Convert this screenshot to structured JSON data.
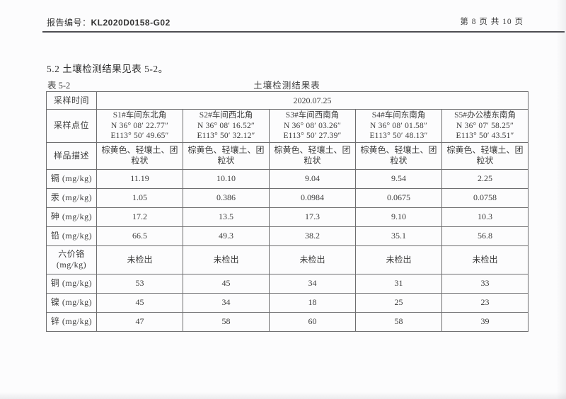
{
  "header": {
    "report_label": "报告编号：",
    "report_number": "KL2020D0158-G02",
    "page_indicator": "第 8 页  共 10 页"
  },
  "section_title": "5.2 土壤检测结果见表 5-2。",
  "caption": {
    "table_number": "表 5-2",
    "table_title": "土壤检测结果表"
  },
  "table": {
    "sampling_time": {
      "label": "采样时间",
      "value": "2020.07.25"
    },
    "sampling_points": {
      "label": "采样点位",
      "points": [
        {
          "name": "S1#车间东北角",
          "lat": "N 36° 08′ 22.77″",
          "lon": "E113° 50′ 49.65″"
        },
        {
          "name": "S2#车间西北角",
          "lat": "N 36° 08′ 16.52″",
          "lon": "E113° 50′ 32.12″"
        },
        {
          "name": "S3#车间西南角",
          "lat": "N 36° 08′ 03.26″",
          "lon": "E113° 50′ 27.39″"
        },
        {
          "name": "S4#车间东南角",
          "lat": "N 36° 08′ 01.58″",
          "lon": "E113° 50′ 48.13″"
        },
        {
          "name": "S5#办公楼东南角",
          "lat": "N 36° 07′ 58.25″",
          "lon": "E113° 50′ 43.51″"
        }
      ]
    },
    "sample_description": {
      "label": "样品描述",
      "values": [
        "棕黄色、轻壤土、团粒状",
        "棕黄色、轻壤土、团粒状",
        "棕黄色、轻壤土、团粒状",
        "棕黄色、轻壤土、团粒状",
        "棕黄色、轻壤土、团粒状"
      ]
    },
    "analytes": [
      {
        "label": "镉 (mg/kg)",
        "values": [
          "11.19",
          "10.10",
          "9.04",
          "9.54",
          "2.25"
        ]
      },
      {
        "label": "汞 (mg/kg)",
        "values": [
          "1.05",
          "0.386",
          "0.0984",
          "0.0675",
          "0.0758"
        ]
      },
      {
        "label": "砷 (mg/kg)",
        "values": [
          "17.2",
          "13.5",
          "17.3",
          "9.10",
          "10.3"
        ]
      },
      {
        "label": "铅 (mg/kg)",
        "values": [
          "66.5",
          "49.3",
          "38.2",
          "35.1",
          "56.8"
        ]
      },
      {
        "label": "六价铬\n(mg/kg)",
        "values": [
          "未检出",
          "未检出",
          "未检出",
          "未检出",
          "未检出"
        ]
      },
      {
        "label": "铜 (mg/kg)",
        "values": [
          "53",
          "45",
          "34",
          "31",
          "33"
        ]
      },
      {
        "label": "镍 (mg/kg)",
        "values": [
          "45",
          "34",
          "18",
          "25",
          "23"
        ]
      },
      {
        "label": "锌 (mg/kg)",
        "values": [
          "47",
          "58",
          "60",
          "58",
          "39"
        ]
      }
    ]
  }
}
